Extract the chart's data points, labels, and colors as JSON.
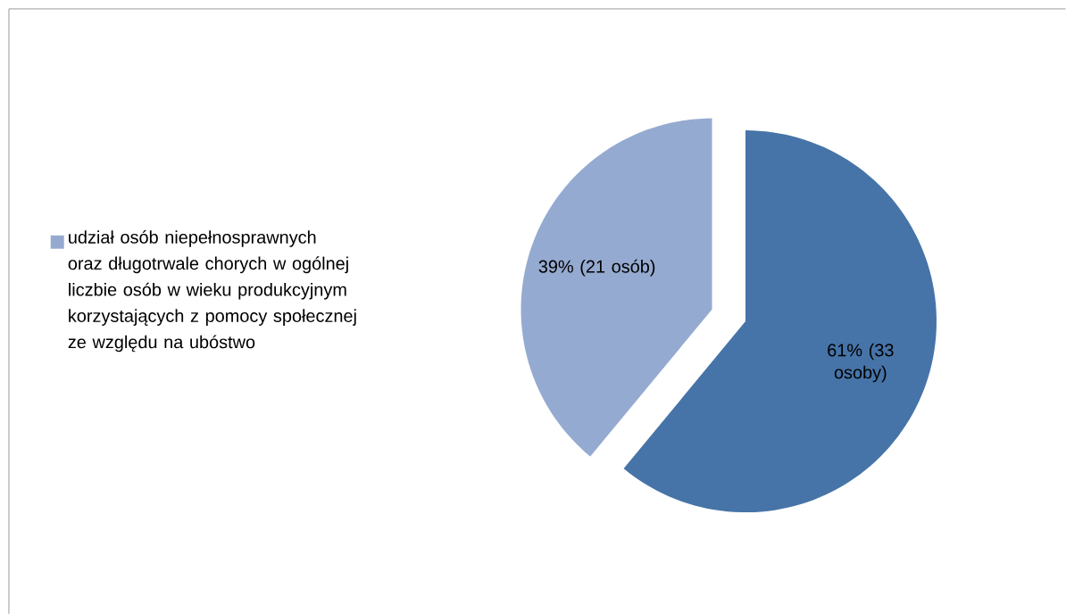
{
  "chart_data": {
    "type": "pie",
    "categories": [
      null,
      "udział osób niepełnosprawnych oraz długotrwale chorych w ogólnej liczbie osób w wieku produkcyjnym korzystających z pomocy społecznej ze względu na ubóstwo"
    ],
    "values": [
      61,
      39
    ],
    "colors": [
      "#4674a8",
      "#95aad0"
    ],
    "value_labels": [
      "61% (33 osoby)",
      "39% (21 osób)"
    ],
    "legend": "left"
  }
}
